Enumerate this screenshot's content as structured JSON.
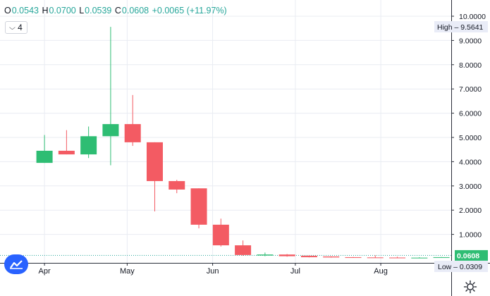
{
  "header": {
    "open_label": "O",
    "open": "0.0543",
    "high_label": "H",
    "high": "0.0700",
    "low_label": "L",
    "low": "0.0539",
    "close_label": "C",
    "close": "0.0608",
    "change": "+0.0065 (+11.97%)"
  },
  "interval": {
    "label": "4"
  },
  "colors": {
    "up": "#26a69a",
    "down": "#ef5350",
    "up_body": "#2ebd73",
    "down_body": "#f35b63",
    "axis_text": "#131722",
    "grid": "#e9ecf2"
  },
  "chart_data": {
    "type": "candlestick",
    "y_range": [
      0,
      10.3
    ],
    "y_ticks": [
      "10.0000",
      "9.0000",
      "8.0000",
      "7.0000",
      "6.0000",
      "5.0000",
      "4.0000",
      "3.0000",
      "2.0000",
      "1.0000"
    ],
    "y_tick_values": [
      10,
      9,
      8,
      7,
      6,
      5,
      4,
      3,
      2,
      1
    ],
    "x_labels": [
      "Apr",
      "May",
      "Jun",
      "Jul",
      "Aug"
    ],
    "x_label_dates": [
      "2021-04-01",
      "2021-05-01",
      "2021-06-01",
      "2021-07-01",
      "2021-08-01"
    ],
    "x_range": [
      "2021-03-22",
      "2021-08-24"
    ],
    "candles": [
      {
        "date": "2021-04-01",
        "o": 3.95,
        "h": 5.1,
        "l": 3.95,
        "c": 4.45
      },
      {
        "date": "2021-04-09",
        "o": 4.45,
        "h": 5.3,
        "l": 4.3,
        "c": 4.3
      },
      {
        "date": "2021-04-17",
        "o": 4.3,
        "h": 5.45,
        "l": 4.15,
        "c": 5.05
      },
      {
        "date": "2021-04-25",
        "o": 5.05,
        "h": 9.56,
        "l": 3.85,
        "c": 5.55
      },
      {
        "date": "2021-05-03",
        "o": 5.55,
        "h": 6.75,
        "l": 4.65,
        "c": 4.8
      },
      {
        "date": "2021-05-11",
        "o": 4.8,
        "h": 4.8,
        "l": 1.95,
        "c": 3.2
      },
      {
        "date": "2021-05-19",
        "o": 3.2,
        "h": 3.25,
        "l": 2.7,
        "c": 2.85
      },
      {
        "date": "2021-05-27",
        "o": 2.9,
        "h": 2.9,
        "l": 1.25,
        "c": 1.4
      },
      {
        "date": "2021-06-04",
        "o": 1.4,
        "h": 1.65,
        "l": 0.5,
        "c": 0.55
      },
      {
        "date": "2021-06-12",
        "o": 0.55,
        "h": 0.75,
        "l": 0.12,
        "c": 0.15
      },
      {
        "date": "2021-06-20",
        "o": 0.13,
        "h": 0.25,
        "l": 0.1,
        "c": 0.17
      },
      {
        "date": "2021-06-28",
        "o": 0.17,
        "h": 0.19,
        "l": 0.08,
        "c": 0.1
      },
      {
        "date": "2021-07-06",
        "o": 0.12,
        "h": 0.14,
        "l": 0.05,
        "c": 0.06
      },
      {
        "date": "2021-07-14",
        "o": 0.09,
        "h": 0.1,
        "l": 0.04,
        "c": 0.05
      },
      {
        "date": "2021-07-22",
        "o": 0.06,
        "h": 0.07,
        "l": 0.03,
        "c": 0.035
      },
      {
        "date": "2021-07-30",
        "o": 0.05,
        "h": 0.14,
        "l": 0.03,
        "c": 0.035
      },
      {
        "date": "2021-08-07",
        "o": 0.045,
        "h": 0.08,
        "l": 0.03,
        "c": 0.035
      },
      {
        "date": "2021-08-15",
        "o": 0.04,
        "h": 0.06,
        "l": 0.03,
        "c": 0.04
      },
      {
        "date": "2021-08-23",
        "o": 0.0543,
        "h": 0.07,
        "l": 0.0539,
        "c": 0.0608
      }
    ],
    "high_marker": {
      "label": "High",
      "value": "9.5641"
    },
    "low_marker": {
      "label": "Low",
      "value": "0.0309"
    },
    "last_price": "0.0608"
  }
}
